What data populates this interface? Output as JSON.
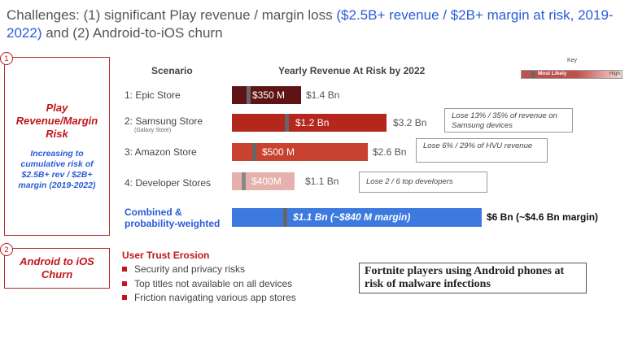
{
  "header": {
    "title_plain": "Challenges: (1) significant Play revenue / margin loss",
    "title_highlight": "($2.5B+ revenue / $2B+ margin at risk, 2019-2022)",
    "title_end": "and (2) Android-to-iOS churn"
  },
  "section1": {
    "number": "1",
    "title": "Play Revenue/Margin Risk",
    "subtitle": "Increasing to cumulative risk of $2.5B+ rev / $2B+ margin (2019-2022)"
  },
  "table": {
    "scenario_header": "Scenario",
    "revenue_header": "Yearly Revenue At Risk by 2022",
    "key": {
      "title": "Key",
      "likely": "Most Likely",
      "high": "High"
    },
    "rows": [
      {
        "scenario": "1: Epic Store",
        "likely": "$350 M",
        "high": "$1.4 Bn"
      },
      {
        "scenario": "2: Samsung Store",
        "note": "(Galaxy Store)",
        "likely": "$1.2 Bn",
        "high": "$3.2 Bn",
        "callout": "Lose 13% / 35% of revenue on Samsung devices"
      },
      {
        "scenario": "3: Amazon Store",
        "likely": "$500 M",
        "high": "$2.6 Bn",
        "callout": "Lose 6% / 29% of HVU revenue"
      },
      {
        "scenario": "4: Developer Stores",
        "likely": "$400M",
        "high": "$1.1 Bn",
        "callout": "Lose 2 / 6 top developers"
      }
    ],
    "combined": {
      "scenario": "Combined & probability-weighted",
      "likely": "$1.1 Bn (~$840 M margin)",
      "high": "$6 Bn (~$4.6 Bn margin)"
    }
  },
  "section2": {
    "number": "2",
    "title": "Android to iOS Churn",
    "heading": "User Trust Erosion",
    "bullets": [
      "Security and privacy risks",
      "Top titles not available on all devices",
      "Friction navigating various app stores"
    ],
    "quote": "Fortnite players using Android phones at risk of malware infections"
  }
}
